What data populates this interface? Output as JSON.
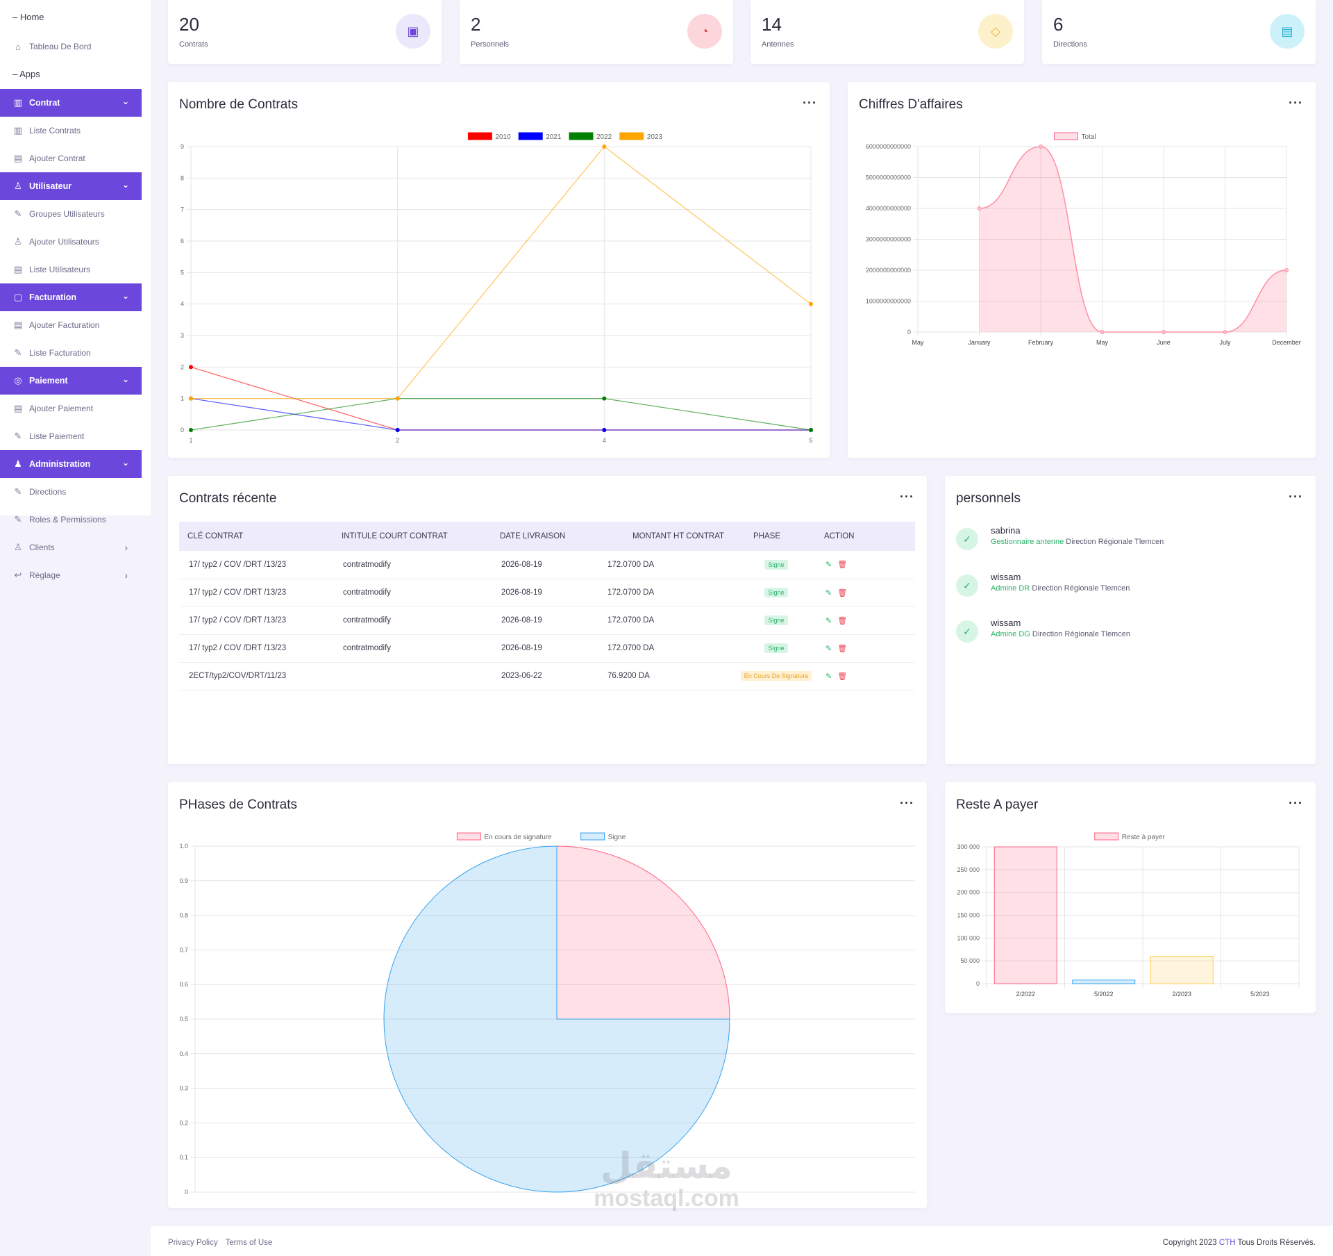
{
  "sidebar": {
    "home_section": "Home",
    "dashboard": "Tableau De Bord",
    "apps_section": "Apps",
    "contrat": {
      "label": "Contrat",
      "items": [
        "Liste Contrats",
        "Ajouter Contrat"
      ]
    },
    "utilisateur": {
      "label": "Utilisateur",
      "items": [
        "Groupes Utilisateurs",
        "Ajouter Utilisateurs",
        "Liste Utilisateurs"
      ]
    },
    "facturation": {
      "label": "Facturation",
      "items": [
        "Ajouter Facturation",
        "Liste Facturation"
      ]
    },
    "paiement": {
      "label": "Paiement",
      "items": [
        "Ajouter Paiement",
        "Liste Paiement"
      ]
    },
    "administration": {
      "label": "Administration",
      "items": [
        "Directions",
        "Roles & Permissions"
      ]
    },
    "clients": "Clients",
    "reglage": "Réglage"
  },
  "stats": [
    {
      "value": "20",
      "label": "Contrats",
      "color": "#6b47dc",
      "bg": "#ece8fb",
      "icon": "inbox-icon"
    },
    {
      "value": "2",
      "label": "Personnels",
      "color": "#ea3a4a",
      "bg": "#fcd6da",
      "icon": "cookie-icon"
    },
    {
      "value": "14",
      "label": "Antennes",
      "color": "#f0b429",
      "bg": "#fdf1cc",
      "icon": "tag-icon"
    },
    {
      "value": "6",
      "label": "Directions",
      "color": "#27b2d6",
      "bg": "#cdf1f8",
      "icon": "folder-icon"
    }
  ],
  "contracts_chart": {
    "title": "Nombre de Contrats",
    "chart_data": {
      "type": "line",
      "x": [
        "1",
        "2",
        "4",
        "5"
      ],
      "ylim": [
        0,
        9
      ],
      "series": [
        {
          "name": "2010",
          "color": "#ff0000",
          "values": [
            2,
            0,
            0,
            0
          ]
        },
        {
          "name": "2021",
          "color": "#0000ff",
          "values": [
            1,
            0,
            0,
            0
          ]
        },
        {
          "name": "2022",
          "color": "#008000",
          "values": [
            0,
            1,
            1,
            0
          ]
        },
        {
          "name": "2023",
          "color": "#ffa500",
          "values": [
            1,
            1,
            9,
            4
          ]
        }
      ]
    }
  },
  "revenue_chart": {
    "title": "Chiffres D'affaires",
    "chart_data": {
      "type": "area",
      "categories": [
        "May",
        "January",
        "February",
        "May",
        "June",
        "July",
        "December"
      ],
      "series": [
        {
          "name": "Total",
          "values": [
            null,
            4000000000000,
            6000000000000,
            0,
            0,
            0,
            2000000000000
          ]
        }
      ],
      "ylim": [
        0,
        6000000000000
      ],
      "yticks": [
        "0",
        "1000000000000",
        "2000000000000",
        "3000000000000",
        "4000000000000",
        "5000000000000",
        "6000000000000"
      ]
    }
  },
  "recent": {
    "title": "Contrats récente",
    "columns": [
      "CLÉ CONTRAT",
      "INTITULE COURT CONTRAT",
      "DATE LIVRAISON",
      "MONTANT HT CONTRAT",
      "PHASE",
      "ACTION"
    ],
    "rows": [
      {
        "key": "17/ typ2 / COV /DRT /13/23",
        "title": "contratmodify",
        "date": "2026-08-19",
        "amount": "172.0700 DA",
        "phase": "Signe",
        "phase_style": "green"
      },
      {
        "key": "17/ typ2 / COV /DRT /13/23",
        "title": "contratmodify",
        "date": "2026-08-19",
        "amount": "172.0700 DA",
        "phase": "Signe",
        "phase_style": "green"
      },
      {
        "key": "17/ typ2 / COV /DRT /13/23",
        "title": "contratmodify",
        "date": "2026-08-19",
        "amount": "172.0700 DA",
        "phase": "Signe",
        "phase_style": "green"
      },
      {
        "key": "17/ typ2 / COV /DRT /13/23",
        "title": "contratmodify",
        "date": "2026-08-19",
        "amount": "172.0700 DA",
        "phase": "Signe",
        "phase_style": "green"
      },
      {
        "key": "2ECT/typ2/COV/DRT/11/23",
        "title": "",
        "date": "2023-06-22",
        "amount": "76.9200 DA",
        "phase": "En Cours De Signature",
        "phase_style": "yellow"
      }
    ]
  },
  "personnels": {
    "title": "personnels",
    "items": [
      {
        "name": "sabrina",
        "role": "Gestionnaire antenne",
        "direction": "Direction Régionale Tlemcen"
      },
      {
        "name": "wissam",
        "role": "Admine DR",
        "direction": "Direction Régionale Tlemcen"
      },
      {
        "name": "wissam",
        "role": "Admine DG",
        "direction": "Direction Régionale Tlemcen"
      }
    ]
  },
  "phases_chart": {
    "title": "PHases de Contrats",
    "chart_data": {
      "type": "pie",
      "labels": [
        "En cours de signature",
        "Signe"
      ],
      "values": [
        1,
        3
      ],
      "colors": [
        "#ff6384",
        "#36a2eb"
      ],
      "yticks": [
        "0",
        "0.1",
        "0.2",
        "0.3",
        "0.4",
        "0.5",
        "0.6",
        "0.7",
        "0.8",
        "0.9",
        "1.0"
      ]
    }
  },
  "reste_chart": {
    "title": "Reste A payer",
    "chart_data": {
      "type": "bar",
      "categories": [
        "2/2022",
        "5/2022",
        "2/2023",
        "5/2023"
      ],
      "series": [
        {
          "name": "Reste à payer",
          "values": [
            300000,
            8000,
            60000,
            0
          ]
        }
      ],
      "bar_colors": [
        "#ff6384",
        "#36a2eb",
        "#ffce56",
        "#4bc0c0"
      ],
      "ylim": [
        0,
        300000
      ],
      "yticks": [
        "0",
        "50 000",
        "100 000",
        "150 000",
        "200 000",
        "250 000",
        "300 000"
      ]
    }
  },
  "footer": {
    "privacy": "Privacy Policy",
    "terms": "Terms of Use",
    "copy_prefix": "Copyright 2023 ",
    "brand": "CTH",
    "copy_suffix": " Tous Droits Réservés."
  },
  "watermark": {
    "arabic": "مستقل",
    "latin": "mostaql.com"
  }
}
